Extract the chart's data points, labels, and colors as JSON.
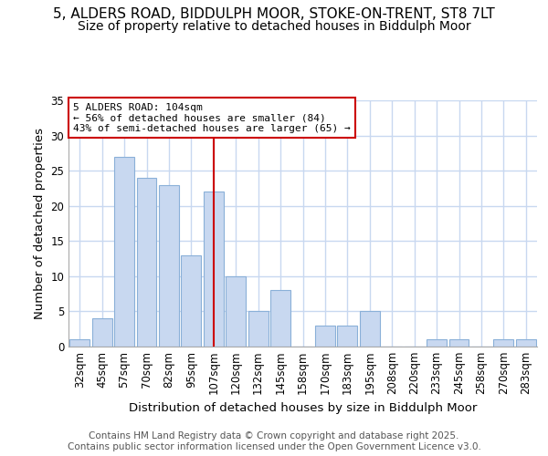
{
  "title_line1": "5, ALDERS ROAD, BIDDULPH MOOR, STOKE-ON-TRENT, ST8 7LT",
  "title_line2": "Size of property relative to detached houses in Biddulph Moor",
  "categories": [
    "32sqm",
    "45sqm",
    "57sqm",
    "70sqm",
    "82sqm",
    "95sqm",
    "107sqm",
    "120sqm",
    "132sqm",
    "145sqm",
    "158sqm",
    "170sqm",
    "183sqm",
    "195sqm",
    "208sqm",
    "220sqm",
    "233sqm",
    "245sqm",
    "258sqm",
    "270sqm",
    "283sqm"
  ],
  "values": [
    1,
    4,
    27,
    24,
    23,
    13,
    22,
    10,
    5,
    8,
    0,
    3,
    3,
    5,
    0,
    0,
    1,
    1,
    0,
    1,
    1
  ],
  "bar_color": "#c8d8f0",
  "bar_edge_color": "#8ab0d8",
  "bar_linewidth": 0.8,
  "marker_index": 6,
  "marker_color": "#cc0000",
  "ylabel": "Number of detached properties",
  "xlabel": "Distribution of detached houses by size in Biddulph Moor",
  "ylim": [
    0,
    35
  ],
  "yticks": [
    0,
    5,
    10,
    15,
    20,
    25,
    30,
    35
  ],
  "annotation_title": "5 ALDERS ROAD: 104sqm",
  "annotation_line1": "← 56% of detached houses are smaller (84)",
  "annotation_line2": "43% of semi-detached houses are larger (65) →",
  "annotation_box_color": "#ffffff",
  "annotation_box_edge_color": "#cc0000",
  "footer_line1": "Contains HM Land Registry data © Crown copyright and database right 2025.",
  "footer_line2": "Contains public sector information licensed under the Open Government Licence v3.0.",
  "background_color": "#ffffff",
  "grid_color": "#c8d8f0",
  "title_fontsize": 11,
  "subtitle_fontsize": 10,
  "axis_label_fontsize": 9.5,
  "tick_fontsize": 8.5,
  "annotation_fontsize": 8,
  "footer_fontsize": 7.5
}
